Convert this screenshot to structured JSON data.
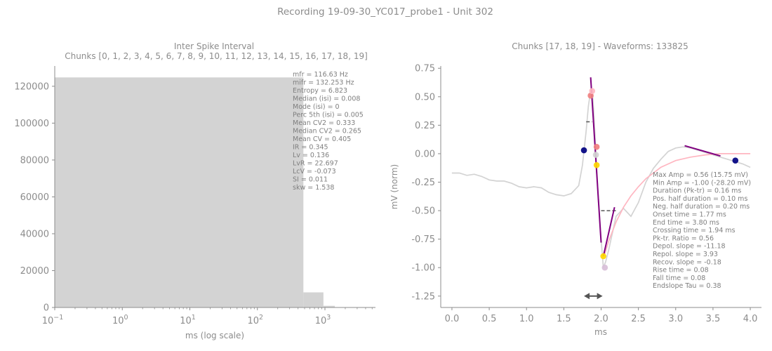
{
  "suptitle": "Recording 19-09-30_YC017_probe1 - Unit 302",
  "chart_data": [
    {
      "type": "bar",
      "title": "Inter Spike Interval",
      "subtitle": "Chunks [0, 1, 2, 3, 4, 5, 6, 7, 8, 9, 10, 11, 12, 13, 14, 15, 16, 17, 18, 19]",
      "xlabel": "ms (log scale)",
      "ylabel": "",
      "x_scale": "log",
      "xlim": [
        0.1,
        5600
      ],
      "ylim": [
        0,
        131000
      ],
      "x_ticks": [
        {
          "value": 0.1,
          "base": "10",
          "exp": "−1"
        },
        {
          "value": 1,
          "base": "10",
          "exp": "0"
        },
        {
          "value": 10,
          "base": "10",
          "exp": "1"
        },
        {
          "value": 100,
          "base": "10",
          "exp": "2"
        },
        {
          "value": 1000,
          "base": "10",
          "exp": "3"
        }
      ],
      "y_ticks": [
        0,
        20000,
        40000,
        60000,
        80000,
        100000,
        120000
      ],
      "bins": [
        {
          "x0": 0.1,
          "x1": 480,
          "count": 124800
        },
        {
          "x0": 480,
          "x1": 950,
          "count": 8200
        },
        {
          "x0": 950,
          "x1": 1400,
          "count": 900
        }
      ],
      "bar_color": "#d3d3d3",
      "stats": [
        "mfr = 116.63 Hz",
        "mifr = 132.253 Hz",
        "Entropy = 6.823",
        "Median (isi) = 0.008",
        "Mode (isi) = 0",
        "Perc 5th (isi) = 0.005",
        "Mean CV2 = 0.333",
        "Median CV2 = 0.265",
        "Mean CV = 0.405",
        "IR = 0.345",
        "Lv = 0.136",
        "LvR = 22.697",
        "LcV = -0.073",
        "SI = 0.011",
        "skw = 1.538"
      ]
    },
    {
      "type": "line",
      "title": "Chunks [17, 18, 19] - Waveforms: 133825",
      "xlabel": "ms",
      "ylabel": "mV (norm)",
      "xlim": [
        -0.15,
        4.15
      ],
      "ylim": [
        -1.35,
        0.77
      ],
      "x_ticks": [
        "0.0",
        "0.5",
        "1.0",
        "1.5",
        "2.0",
        "2.5",
        "3.0",
        "3.5",
        "4.0"
      ],
      "y_ticks": [
        "0.75",
        "0.50",
        "0.25",
        "0.00",
        "-0.25",
        "-0.50",
        "-0.75",
        "-1.00",
        "-1.25"
      ],
      "series": [
        {
          "color": "#d3d3d3",
          "x": [
            0,
            0.1,
            0.2,
            0.3,
            0.4,
            0.5,
            0.6,
            0.7,
            0.8,
            0.9,
            1.0,
            1.1,
            1.2,
            1.3,
            1.4,
            1.5,
            1.6,
            1.7,
            1.75,
            1.8,
            1.83,
            1.86,
            1.88,
            1.9,
            1.93,
            1.96,
            2.0,
            2.03,
            2.06,
            2.1,
            2.2,
            2.3,
            2.4,
            2.5,
            2.6,
            2.7,
            2.8,
            2.9,
            3.0,
            3.1,
            3.2,
            3.3,
            3.4,
            3.5,
            3.6,
            3.7,
            3.8,
            3.9,
            4.0
          ],
          "y": [
            -0.17,
            -0.17,
            -0.19,
            -0.18,
            -0.2,
            -0.23,
            -0.24,
            -0.24,
            -0.26,
            -0.29,
            -0.3,
            -0.29,
            -0.3,
            -0.34,
            -0.36,
            -0.37,
            -0.35,
            -0.28,
            -0.1,
            0.2,
            0.42,
            0.55,
            0.56,
            0.38,
            0.0,
            -0.35,
            -0.75,
            -1.0,
            -0.95,
            -0.85,
            -0.55,
            -0.48,
            -0.55,
            -0.43,
            -0.25,
            -0.13,
            -0.05,
            0.02,
            0.05,
            0.06,
            0.05,
            0.03,
            0.01,
            -0.01,
            -0.03,
            -0.05,
            -0.07,
            -0.09,
            -0.12
          ]
        },
        {
          "color": "#ffb6c1",
          "x": [
            2.05,
            2.1,
            2.2,
            2.3,
            2.4,
            2.5,
            2.6,
            2.7,
            2.8,
            2.9,
            3.0,
            3.2,
            3.4,
            3.6,
            3.8,
            4.0
          ],
          "y": [
            -0.88,
            -0.77,
            -0.6,
            -0.47,
            -0.37,
            -0.29,
            -0.22,
            -0.17,
            -0.12,
            -0.09,
            -0.06,
            -0.03,
            -0.01,
            0.0,
            0.0,
            0.0
          ]
        }
      ],
      "slope_lines": [
        {
          "color": "#800080",
          "x": [
            1.86,
            2.0
          ],
          "y": [
            0.67,
            -0.78
          ]
        },
        {
          "color": "#800080",
          "x": [
            2.03,
            2.18
          ],
          "y": [
            -0.9,
            -0.47
          ]
        },
        {
          "color": "#800080",
          "x": [
            3.12,
            3.6
          ],
          "y": [
            0.07,
            -0.02
          ]
        }
      ],
      "points": [
        {
          "x": 1.77,
          "y": 0.03,
          "color": "#000080"
        },
        {
          "x": 3.8,
          "y": -0.06,
          "color": "#000080"
        },
        {
          "x": 1.86,
          "y": 0.51,
          "color": "#f08080"
        },
        {
          "x": 1.88,
          "y": 0.55,
          "color": "#ffb6c1"
        },
        {
          "x": 1.94,
          "y": 0.06,
          "color": "#f08080"
        },
        {
          "x": 1.94,
          "y": -0.1,
          "color": "#ffd700"
        },
        {
          "x": 1.93,
          "y": -0.01,
          "color": "#d3d3d3"
        },
        {
          "x": 2.03,
          "y": -0.9,
          "color": "#ffd700"
        },
        {
          "x": 2.05,
          "y": -1.0,
          "color": "#d8bfd8"
        }
      ],
      "dashed_lines": [
        {
          "x": [
            1.8,
            1.88
          ],
          "y": [
            0.28,
            0.28
          ]
        },
        {
          "x": [
            2.0,
            2.2
          ],
          "y": [
            -0.5,
            -0.5
          ]
        }
      ],
      "double_arrow": {
        "x": [
          1.77,
          2.02
        ],
        "y": -1.25
      },
      "stats": [
        "Max Amp = 0.56 (15.75 mV)",
        "Min Amp = -1.00 (-28.20 mV)",
        "Duration (Pk-tr) = 0.16 ms",
        "Pos. half duration = 0.10 ms",
        "Neg. half duration = 0.20 ms",
        "Onset time = 1.77 ms",
        "End time = 3.80 ms",
        "Crossing time = 1.94 ms",
        "Pk-tr. Ratio = 0.56",
        "Depol. slope = -11.18",
        "Repol. slope = 3.93",
        "Recov. slope = -0.18",
        "Rise time = 0.08",
        "Fall time = 0.08",
        "Endslope Tau = 0.38"
      ]
    }
  ]
}
